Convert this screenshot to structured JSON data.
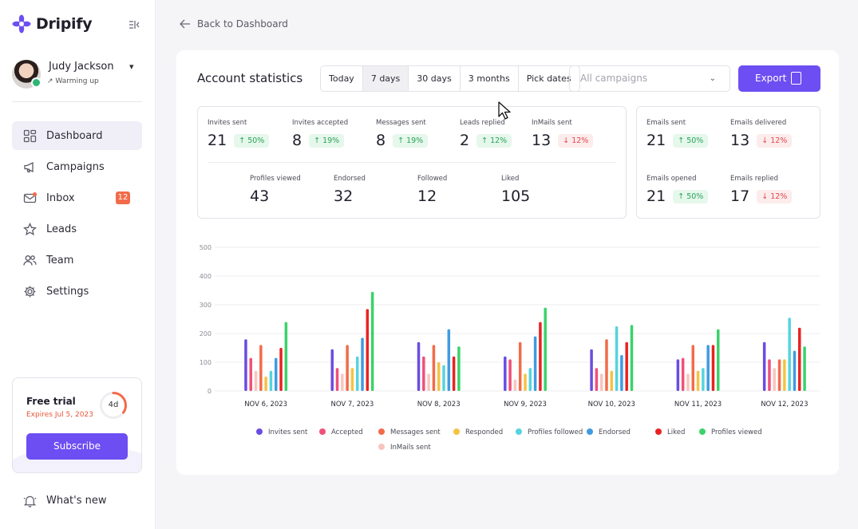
{
  "app": {
    "name": "Dripify"
  },
  "colors": {
    "accent": "#6c4ef2",
    "up": "#2aa35a",
    "down": "#e0484f",
    "badge": "#f26b4a"
  },
  "user": {
    "name": "Judy Jackson",
    "status": "Warming up"
  },
  "nav": [
    {
      "label": "Dashboard",
      "icon": "dashboard-icon",
      "active": true
    },
    {
      "label": "Campaigns",
      "icon": "megaphone-icon"
    },
    {
      "label": "Inbox",
      "icon": "mail-icon",
      "badge": "12"
    },
    {
      "label": "Leads",
      "icon": "star-icon"
    },
    {
      "label": "Team",
      "icon": "team-icon"
    },
    {
      "label": "Settings",
      "icon": "gear-icon"
    }
  ],
  "trial": {
    "title": "Free trial",
    "expires": "Expires Jul 5, 2023",
    "days_left": "4d",
    "progress": 0.35,
    "subscribe_label": "Subscribe"
  },
  "whats_new": "What's new",
  "back_label": "Back to Dashboard",
  "stats": {
    "title": "Account statistics",
    "ranges": [
      "Today",
      "7 days",
      "30 days",
      "3 months",
      "Pick dates"
    ],
    "active_range": "7 days",
    "campaign_placeholder": "All campaigns",
    "export_label": "Export",
    "linkedin": [
      {
        "label": "Invites sent",
        "value": "21",
        "change": "50%",
        "dir": "up"
      },
      {
        "label": "Invites accepted",
        "value": "8",
        "change": "19%",
        "dir": "up"
      },
      {
        "label": "Messages sent",
        "value": "8",
        "change": "19%",
        "dir": "up"
      },
      {
        "label": "Leads replied",
        "value": "2",
        "change": "12%",
        "dir": "up"
      },
      {
        "label": "InMails sent",
        "value": "13",
        "change": "12%",
        "dir": "down"
      }
    ],
    "linkedin_extra": [
      {
        "label": "Profiles viewed",
        "value": "43"
      },
      {
        "label": "Endorsed",
        "value": "32"
      },
      {
        "label": "Followed",
        "value": "12"
      },
      {
        "label": "Liked",
        "value": "105"
      }
    ],
    "email": [
      {
        "label": "Emails sent",
        "value": "21",
        "change": "50%",
        "dir": "up"
      },
      {
        "label": "Emails delivered",
        "value": "13",
        "change": "12%",
        "dir": "down"
      },
      {
        "label": "Emails opened",
        "value": "21",
        "change": "50%",
        "dir": "up"
      },
      {
        "label": "Emails replied",
        "value": "17",
        "change": "12%",
        "dir": "down"
      }
    ]
  },
  "chart_data": {
    "type": "bar",
    "categories": [
      "NOV 6, 2023",
      "NOV 7, 2023",
      "NOV 8, 2023",
      "NOV 9, 2023",
      "NOV 10, 2023",
      "NOV 11, 2023",
      "NOV 12, 2023"
    ],
    "ylim": [
      0,
      500
    ],
    "yticks": [
      "0",
      "100",
      "200",
      "300",
      "400",
      "500"
    ],
    "grid": true,
    "series": [
      {
        "name": "Invites sent",
        "color": "#6a4de0",
        "values": [
          180,
          145,
          170,
          120,
          145,
          110,
          170
        ]
      },
      {
        "name": "Accepted",
        "color": "#f0507a",
        "values": [
          115,
          80,
          120,
          110,
          80,
          115,
          110
        ]
      },
      {
        "name": "InMails sent",
        "color": "#f8c5be",
        "values": [
          70,
          60,
          60,
          40,
          60,
          60,
          80
        ]
      },
      {
        "name": "Messages sent",
        "color": "#f26b4a",
        "values": [
          160,
          160,
          160,
          170,
          180,
          160,
          110
        ]
      },
      {
        "name": "Responded",
        "color": "#f5c342",
        "values": [
          50,
          80,
          100,
          60,
          70,
          70,
          110
        ]
      },
      {
        "name": "Profiles followed",
        "color": "#55d4de",
        "values": [
          70,
          120,
          90,
          80,
          225,
          80,
          255
        ]
      },
      {
        "name": "Endorsed",
        "color": "#3f9be0",
        "values": [
          115,
          185,
          215,
          190,
          125,
          160,
          140
        ]
      },
      {
        "name": "Liked",
        "color": "#e82323",
        "values": [
          150,
          285,
          120,
          240,
          170,
          160,
          220
        ]
      },
      {
        "name": "Profiles viewed",
        "color": "#3bd26a",
        "values": [
          240,
          345,
          155,
          290,
          230,
          215,
          155
        ]
      }
    ],
    "legend_order": [
      "Invites sent",
      "Accepted",
      "Messages sent",
      "Responded",
      "Profiles followed",
      "Endorsed",
      "Liked",
      "Profiles viewed",
      "InMails sent"
    ],
    "legend": "bottom"
  }
}
